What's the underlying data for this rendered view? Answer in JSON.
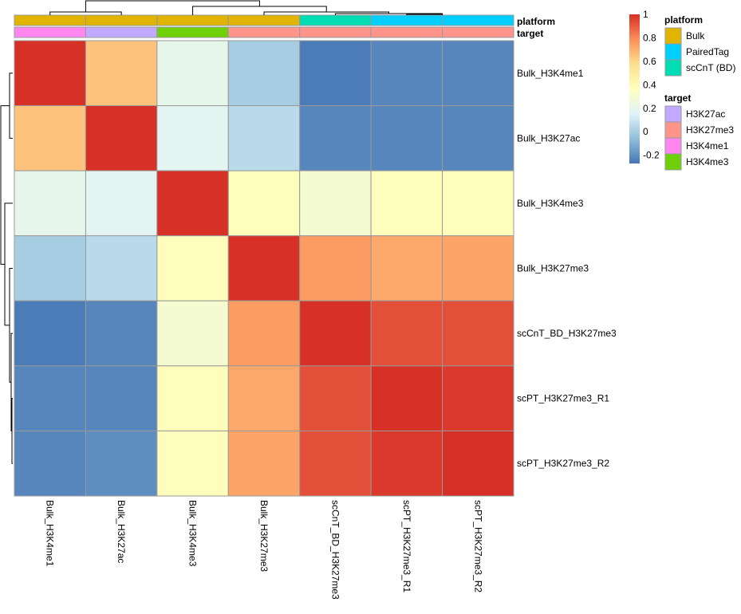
{
  "chart_data": {
    "type": "heatmap",
    "rows": [
      "Bulk_H3K4me1",
      "Bulk_H3K27ac",
      "Bulk_H3K4me3",
      "Bulk_H3K27me3",
      "scCnT_BD_H3K27me3",
      "scPT_H3K27me3_R1",
      "scPT_H3K27me3_R2"
    ],
    "columns": [
      "Bulk_H3K4me1",
      "Bulk_H3K27ac",
      "Bulk_H3K4me3",
      "Bulk_H3K27me3",
      "scCnT_BD_H3K27me3",
      "scPT_H3K27me3_R1",
      "scPT_H3K27me3_R2"
    ],
    "values": [
      [
        1.0,
        0.65,
        0.2,
        0.0,
        -0.25,
        -0.22,
        -0.22
      ],
      [
        0.65,
        1.0,
        0.18,
        0.05,
        -0.22,
        -0.22,
        -0.22
      ],
      [
        0.2,
        0.18,
        1.0,
        0.38,
        0.3,
        0.38,
        0.38
      ],
      [
        0.0,
        0.05,
        0.38,
        1.0,
        0.75,
        0.72,
        0.73
      ],
      [
        -0.25,
        -0.22,
        0.3,
        0.75,
        1.0,
        0.93,
        0.93
      ],
      [
        -0.22,
        -0.22,
        0.38,
        0.72,
        0.93,
        1.0,
        0.98
      ],
      [
        -0.22,
        -0.2,
        0.38,
        0.73,
        0.93,
        0.98,
        1.0
      ]
    ],
    "color_scale": {
      "range": [
        -0.27,
        1.0
      ],
      "colors": [
        "#4575B4",
        "#91BFDB",
        "#E0F3F8",
        "#FFFFBF",
        "#FEE090",
        "#FC8D59",
        "#D73027"
      ],
      "ticks": [
        "1",
        "0.8",
        "0.6",
        "0.4",
        "0.2",
        "0",
        "-0.2"
      ],
      "tick_values": [
        1,
        0.8,
        0.6,
        0.4,
        0.2,
        0,
        -0.2
      ]
    },
    "column_annotations": {
      "platform": [
        "Bulk",
        "Bulk",
        "Bulk",
        "Bulk",
        "scCnT (BD)",
        "PairedTag",
        "PairedTag"
      ],
      "target": [
        "H3K4me1",
        "H3K27ac",
        "H3K4me3",
        "H3K27me3",
        "H3K27me3",
        "H3K27me3",
        "H3K27me3"
      ]
    },
    "annotation_labels": [
      "platform",
      "target"
    ],
    "legends": {
      "platform": {
        "title": "platform",
        "items": [
          {
            "label": "Bulk",
            "color": "#E0B400"
          },
          {
            "label": "PairedTag",
            "color": "#00CFFF"
          },
          {
            "label": "scCnT (BD)",
            "color": "#00DDB4"
          }
        ]
      },
      "target": {
        "title": "target",
        "items": [
          {
            "label": "H3K27ac",
            "color": "#C0A9FF"
          },
          {
            "label": "H3K27me3",
            "color": "#FF948A"
          },
          {
            "label": "H3K4me1",
            "color": "#FF86EE"
          },
          {
            "label": "H3K4me3",
            "color": "#70D008"
          }
        ]
      }
    },
    "dendrogram": "hierarchical clustering on rows and columns: ((1,2),(3,(4,(5,(6,7)))))",
    "grid": true,
    "legend_placement": "right"
  }
}
